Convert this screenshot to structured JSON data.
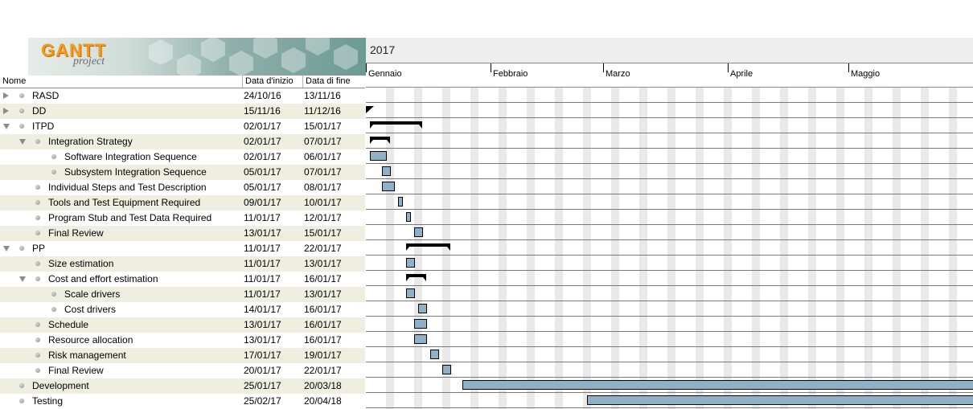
{
  "logo": {
    "word": "GANTT",
    "sub": "project"
  },
  "columns": {
    "name": "Nome",
    "start": "Data d'inizio",
    "end": "Data di fine"
  },
  "timeline": {
    "year": "2017",
    "months": [
      "Gennaio",
      "Febbraio",
      "Marzo",
      "Aprile",
      "Maggio"
    ]
  },
  "tasks": [
    {
      "name": "RASD",
      "start": "24/10/16",
      "end": "13/11/16",
      "level": 0,
      "toggle": "closed"
    },
    {
      "name": "DD",
      "start": "15/11/16",
      "end": "11/12/16",
      "level": 0,
      "toggle": "closed"
    },
    {
      "name": "ITPD",
      "start": "02/01/17",
      "end": "15/01/17",
      "level": 0,
      "toggle": "open"
    },
    {
      "name": "Integration Strategy",
      "start": "02/01/17",
      "end": "07/01/17",
      "level": 1,
      "toggle": "open"
    },
    {
      "name": "Software Integration Sequence",
      "start": "02/01/17",
      "end": "06/01/17",
      "level": 2,
      "toggle": ""
    },
    {
      "name": "Subsystem Integration Sequence",
      "start": "05/01/17",
      "end": "07/01/17",
      "level": 2,
      "toggle": ""
    },
    {
      "name": "Individual Steps and Test Description",
      "start": "05/01/17",
      "end": "08/01/17",
      "level": 1,
      "toggle": ""
    },
    {
      "name": "Tools and Test Equipment Required",
      "start": "09/01/17",
      "end": "10/01/17",
      "level": 1,
      "toggle": ""
    },
    {
      "name": "Program Stub and Test Data Required",
      "start": "11/01/17",
      "end": "12/01/17",
      "level": 1,
      "toggle": ""
    },
    {
      "name": "Final Review",
      "start": "13/01/17",
      "end": "15/01/17",
      "level": 1,
      "toggle": ""
    },
    {
      "name": "PP",
      "start": "11/01/17",
      "end": "22/01/17",
      "level": 0,
      "toggle": "open"
    },
    {
      "name": "Size estimation",
      "start": "11/01/17",
      "end": "13/01/17",
      "level": 1,
      "toggle": ""
    },
    {
      "name": "Cost and effort estimation",
      "start": "11/01/17",
      "end": "16/01/17",
      "level": 1,
      "toggle": "open"
    },
    {
      "name": "Scale drivers",
      "start": "11/01/17",
      "end": "13/01/17",
      "level": 2,
      "toggle": ""
    },
    {
      "name": "Cost drivers",
      "start": "14/01/17",
      "end": "16/01/17",
      "level": 2,
      "toggle": ""
    },
    {
      "name": "Schedule",
      "start": "13/01/17",
      "end": "16/01/17",
      "level": 1,
      "toggle": ""
    },
    {
      "name": "Resource allocation",
      "start": "13/01/17",
      "end": "16/01/17",
      "level": 1,
      "toggle": ""
    },
    {
      "name": "Risk management",
      "start": "17/01/17",
      "end": "19/01/17",
      "level": 1,
      "toggle": ""
    },
    {
      "name": "Final Review",
      "start": "20/01/17",
      "end": "22/01/17",
      "level": 1,
      "toggle": ""
    },
    {
      "name": "Development",
      "start": "25/01/17",
      "end": "20/03/18",
      "level": 0,
      "toggle": ""
    },
    {
      "name": "Testing",
      "start": "25/02/17",
      "end": "20/04/18",
      "level": 0,
      "toggle": ""
    }
  ],
  "colors": {
    "task_bar": "#8fb1c8",
    "summary_bar": "#000000",
    "weekend": "#e9e9e9",
    "row_alt": "#efeedf"
  }
}
